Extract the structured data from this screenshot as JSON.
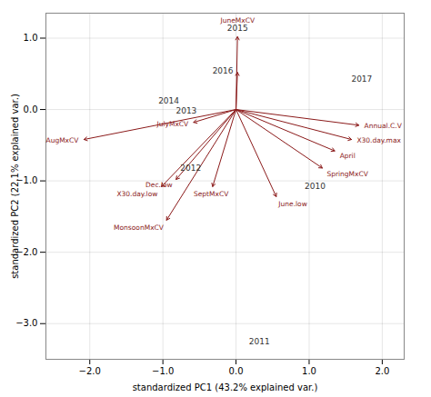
{
  "chart_data": {
    "type": "biplot",
    "xlabel": "standardized PC1 (43.2% explained var.)",
    "ylabel": "standardized PC2 (22.1% explained var.)",
    "xlim": [
      -2.6,
      2.3
    ],
    "ylim": [
      -3.5,
      1.35
    ],
    "xticks": [
      -2,
      -1,
      0,
      1,
      2
    ],
    "yticks": [
      -3,
      -2,
      -1,
      0,
      1
    ],
    "grid": true,
    "arrows": {
      "color": "#8B1A1A",
      "origin": [
        0,
        0
      ],
      "x": [
        0.02,
        0.02,
        -0.58,
        1.68,
        1.58,
        1.35,
        1.18,
        -0.82,
        -1.02,
        -0.95,
        -0.32,
        0.55,
        -2.08
      ],
      "y": [
        1.02,
        0.52,
        -0.18,
        -0.22,
        -0.42,
        -0.58,
        -0.82,
        -0.98,
        -1.08,
        -1.55,
        -1.08,
        -1.22,
        -0.42
      ],
      "labels": [
        "JuneMxCV",
        null,
        "JulyMxCV",
        "Annual.C.V",
        "X30.day.max",
        "April",
        "SpringMxCV",
        "Dec.low",
        "X30.day.low",
        "MonsoonMxCV",
        "SeptMxCV",
        "June.low",
        "AugMxCV"
      ]
    },
    "points": {
      "color": "#333333",
      "x": [
        0.02,
        -0.18,
        -0.92,
        -0.68,
        -0.62,
        1.72,
        1.08,
        0.32
      ],
      "y": [
        1.14,
        0.54,
        0.12,
        -0.02,
        -0.82,
        0.42,
        -1.08,
        -3.25
      ],
      "labels": [
        "2015",
        "2016",
        "2014",
        "2013",
        "2012",
        "2017",
        "2010",
        "2011"
      ]
    }
  }
}
